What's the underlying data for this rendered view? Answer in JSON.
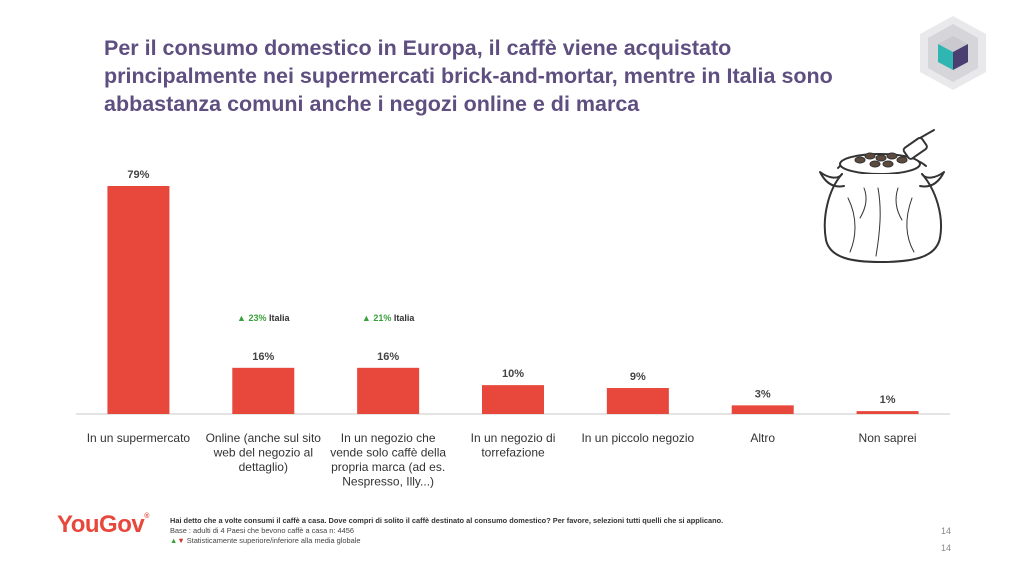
{
  "title_lines": [
    "Per il consumo domestico in Europa, il caffè viene acquistato",
    "principalmente nei supermercati brick-and-mortar, mentre in Italia sono",
    "abbastanza comuni anche i negozi online e di marca"
  ],
  "colors": {
    "title": "#5e4f80",
    "bar": "#e8473c",
    "up": "#39a13a",
    "down": "#d2372b",
    "brand": "#e8473c"
  },
  "chart_data": {
    "type": "bar",
    "categories": [
      [
        "In un supermercato"
      ],
      [
        "Online (anche sul sito",
        "web del negozio al",
        "dettaglio)"
      ],
      [
        "In un negozio che",
        "vende solo caffè della",
        "propria marca (ad es.",
        "Nespresso, Illy...)"
      ],
      [
        "In un negozio di",
        "torrefazione"
      ],
      [
        "In un piccolo negozio"
      ],
      [
        "Altro"
      ],
      [
        "Non saprei"
      ]
    ],
    "values": [
      79,
      16,
      16,
      10,
      9,
      3,
      1
    ],
    "value_labels": [
      "79%",
      "16%",
      "16%",
      "10%",
      "9%",
      "3%",
      "1%"
    ],
    "ylim": [
      0,
      79
    ],
    "annotations": [
      {
        "category_index": 1,
        "marker": "▲",
        "value": "23%",
        "label": "Italia"
      },
      {
        "category_index": 2,
        "marker": "▲",
        "value": "21%",
        "label": "Italia"
      }
    ],
    "xlabel": "",
    "ylabel": "",
    "grid": false
  },
  "footer": {
    "brand": "YouGov",
    "brand_mark": "®",
    "question": "Hai detto che a volte consumi il caffè a casa. Dove compri di solito il caffè destinato al consumo domestico? Per favore, selezioni tutti quelli che si applicano.",
    "base": "Base : adulti di 4 Paesi che bevono caffè a casa n: 4456",
    "legend_up": "▲",
    "legend_down": "▼",
    "legend_text": "Statisticamente superiore/inferiore alla media globale",
    "page_number_1": "14",
    "page_number_2": "14"
  },
  "icons": {
    "logo": "cube-logo-icon",
    "illustration": "coffee-sack-icon"
  }
}
